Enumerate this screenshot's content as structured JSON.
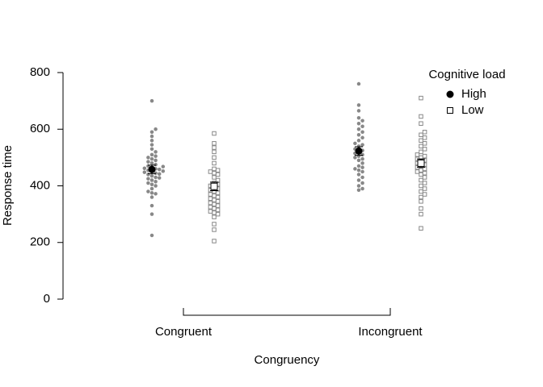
{
  "chart_data": {
    "type": "beeswarm",
    "xlabel": "Congruency",
    "ylabel": "Response time",
    "categories": [
      "Congruent",
      "Incongruent"
    ],
    "ylim": [
      0,
      800
    ],
    "yticks": [
      0,
      200,
      400,
      600,
      800
    ],
    "legend_title": "Cognitive load",
    "legend": "top-right",
    "series": [
      {
        "name": "High",
        "color": "#888888",
        "mean_color": "#000000",
        "marker": "circle",
        "means": [
          458,
          523
        ],
        "errors": [
          15,
          15
        ],
        "values": [
          [
            225,
            300,
            330,
            360,
            372,
            375,
            380,
            390,
            400,
            405,
            410,
            415,
            420,
            425,
            428,
            430,
            435,
            440,
            442,
            445,
            448,
            450,
            452,
            455,
            458,
            460,
            462,
            465,
            468,
            470,
            475,
            480,
            485,
            490,
            495,
            500,
            505,
            510,
            520,
            530,
            545,
            560,
            575,
            590,
            600,
            700
          ],
          [
            385,
            390,
            400,
            410,
            420,
            430,
            440,
            450,
            455,
            460,
            465,
            470,
            480,
            490,
            495,
            500,
            505,
            510,
            515,
            520,
            525,
            530,
            540,
            545,
            550,
            560,
            570,
            580,
            590,
            600,
            610,
            620,
            630,
            640,
            665,
            685,
            760
          ]
        ]
      },
      {
        "name": "Low",
        "color": "#888888",
        "mean_color": "#000000",
        "marker": "square",
        "means": [
          398,
          480
        ],
        "errors": [
          15,
          15
        ],
        "values": [
          [
            205,
            245,
            265,
            290,
            300,
            305,
            310,
            315,
            320,
            325,
            330,
            335,
            340,
            345,
            350,
            355,
            360,
            365,
            370,
            375,
            380,
            385,
            390,
            395,
            400,
            405,
            410,
            420,
            430,
            440,
            445,
            450,
            455,
            460,
            480,
            500,
            520,
            535,
            550,
            585
          ],
          [
            250,
            300,
            320,
            345,
            360,
            370,
            380,
            390,
            400,
            410,
            420,
            430,
            440,
            445,
            450,
            455,
            460,
            465,
            470,
            475,
            480,
            485,
            490,
            495,
            500,
            505,
            510,
            520,
            530,
            540,
            550,
            560,
            570,
            580,
            590,
            620,
            645,
            710
          ]
        ]
      }
    ]
  }
}
